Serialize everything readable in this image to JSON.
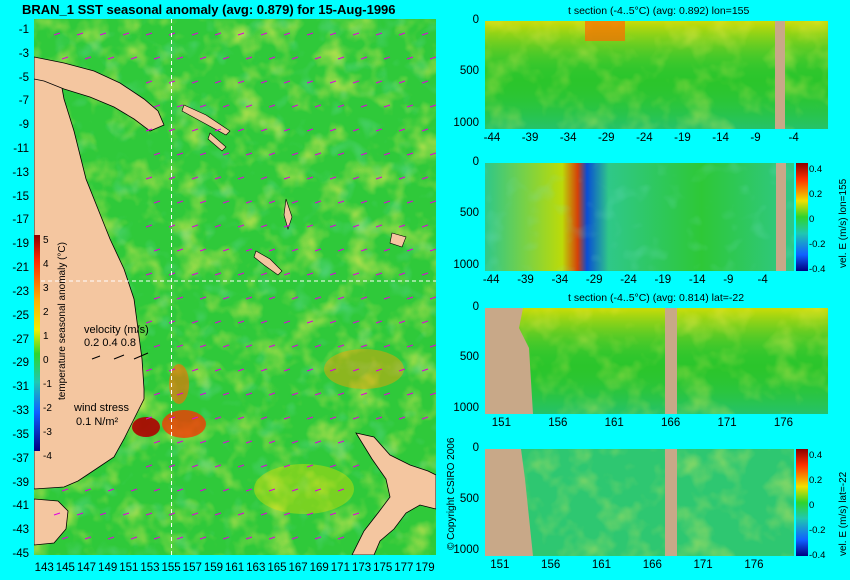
{
  "chart_data": [
    {
      "type": "heatmap",
      "title": "BRAN_1 SST seasonal anomaly (avg: 0.879) for 15-Aug-1996",
      "x_ticks": [
        "143",
        "145",
        "147",
        "149",
        "151",
        "153",
        "155",
        "157",
        "159",
        "161",
        "163",
        "165",
        "167",
        "169",
        "171",
        "173",
        "175",
        "177",
        "179"
      ],
      "y_ticks": [
        "-1",
        "-3",
        "-5",
        "-7",
        "-9",
        "-11",
        "-13",
        "-15",
        "-17",
        "-19",
        "-21",
        "-23",
        "-25",
        "-27",
        "-29",
        "-31",
        "-33",
        "-35",
        "-37",
        "-39",
        "-41",
        "-43",
        "-45"
      ],
      "xlim": [
        142,
        180
      ],
      "ylim": [
        -45,
        0
      ],
      "section_lines": {
        "lon": 155,
        "lat": -22
      },
      "colorbar": {
        "label": "temperature seasonal anomaly (°C)",
        "ticks": [
          "5",
          "4",
          "3",
          "2",
          "1",
          "0",
          "-1",
          "-2",
          "-3",
          "-4"
        ],
        "range": [
          -4,
          5
        ]
      },
      "velocity_legend": {
        "label": "velocity (m/s)",
        "values": "0.2 0.4 0.8"
      },
      "wind_legend": {
        "label": "wind stress",
        "value": "0.1 N/m²"
      },
      "copyright": "© Copyright CSIRO 2006"
    },
    {
      "type": "heatmap",
      "title": "t section (-4..5°C) (avg: 0.892) lon=155",
      "x_ticks": [
        "-44",
        "-39",
        "-34",
        "-29",
        "-24",
        "-19",
        "-14",
        "-9",
        "-4"
      ],
      "y_ticks": [
        "0",
        "500",
        "1000"
      ]
    },
    {
      "type": "heatmap",
      "title": "",
      "x_ticks": [
        "-44",
        "-39",
        "-34",
        "-29",
        "-24",
        "-19",
        "-14",
        "-9",
        "-4"
      ],
      "y_ticks": [
        "0",
        "500",
        "1000"
      ],
      "colorbar": {
        "label": "vel. E (m/s) lon=155",
        "ticks": [
          "0.4",
          "0.2",
          "0",
          "-0.2",
          "-0.4"
        ],
        "range": [
          -0.4,
          0.4
        ]
      }
    },
    {
      "type": "heatmap",
      "title": "t section (-4..5°C) (avg: 0.814) lat=-22",
      "x_ticks": [
        "151",
        "156",
        "161",
        "166",
        "171",
        "176"
      ],
      "y_ticks": [
        "0",
        "500",
        "1000"
      ]
    },
    {
      "type": "heatmap",
      "title": "",
      "x_ticks": [
        "151",
        "156",
        "161",
        "166",
        "171",
        "176"
      ],
      "y_ticks": [
        "0",
        "500",
        "1000"
      ],
      "colorbar": {
        "label": "vel. E (m/s) lat=-22",
        "ticks": [
          "0.4",
          "0.2",
          "0",
          "-0.2",
          "-0.4"
        ],
        "range": [
          -0.4,
          0.4
        ]
      }
    }
  ]
}
